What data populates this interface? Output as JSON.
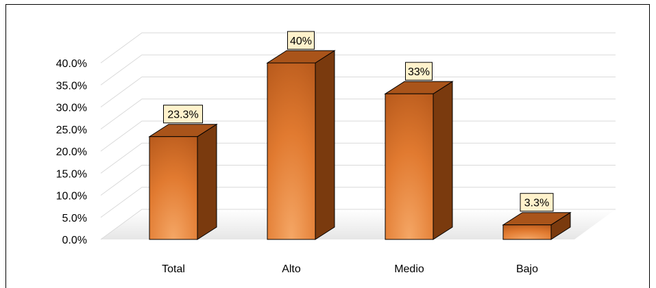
{
  "chart_data": {
    "type": "bar",
    "categories": [
      "Total",
      "Alto",
      "Medio",
      "Bajo"
    ],
    "values": [
      23.3,
      40,
      33,
      3.3
    ],
    "data_labels": [
      "23.3%",
      "40%",
      "33%",
      "3.3%"
    ],
    "yticks": [
      "0.0%",
      "5.0%",
      "10.0%",
      "15.0%",
      "20.0%",
      "25.0%",
      "30.0%",
      "35.0%",
      "40.0%"
    ],
    "ylim": [
      0,
      40
    ],
    "title": "",
    "xlabel": "",
    "ylabel": "",
    "grid": true,
    "bar_style": "3d-column",
    "colors": {
      "bar_light": "#f5a766",
      "bar_mid": "#e17a30",
      "bar_dark": "#9c4812",
      "bar_side": "#7a3a0e",
      "bar_top": "#a9541a",
      "label_bg": "#fff2cc",
      "grid": "#d9d9d9"
    }
  }
}
